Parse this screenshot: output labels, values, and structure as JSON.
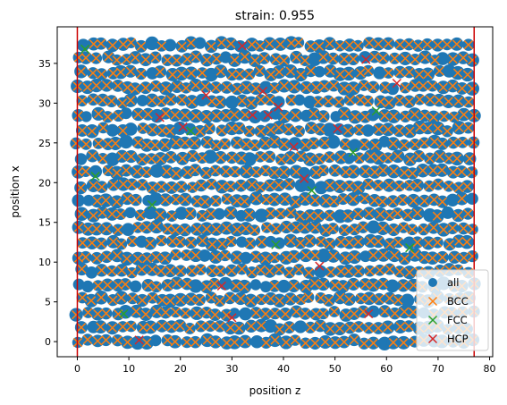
{
  "chart_data": {
    "type": "scatter",
    "title": "strain: 0.955",
    "xlabel": "position z",
    "ylabel": "position x",
    "xlim": [
      -3.9,
      80.6
    ],
    "ylim": [
      -1.9,
      39.6
    ],
    "xticks": [
      0,
      10,
      20,
      30,
      40,
      50,
      60,
      70,
      80
    ],
    "yticks": [
      0,
      5,
      10,
      15,
      20,
      25,
      30,
      35
    ],
    "vlines": [
      {
        "x": 0,
        "color": "#cc0000"
      },
      {
        "x": 77,
        "color": "#cc0000"
      }
    ],
    "lattice": {
      "x_start": 0.0,
      "x_end": 77.0,
      "x_spacing": 1.92,
      "y_start": 0.0,
      "y_end": 37.8,
      "y_spacing": 1.78,
      "stagger": 0.96
    },
    "series": [
      {
        "name": "all",
        "marker": "circle",
        "color": "#1f77b4"
      },
      {
        "name": "BCC",
        "marker": "x",
        "color": "#ff7f0e"
      },
      {
        "name": "FCC",
        "marker": "x",
        "color": "#2ca02c"
      },
      {
        "name": "HCP",
        "marker": "x",
        "color": "#d62728"
      }
    ],
    "fcc_points": [
      [
        1.5,
        36.8
      ],
      [
        3.5,
        20.8
      ],
      [
        9.0,
        3.5
      ],
      [
        14.5,
        17.2
      ],
      [
        38.5,
        12.2
      ],
      [
        45.5,
        19.0
      ],
      [
        53.5,
        23.8
      ],
      [
        64.5,
        11.8
      ],
      [
        22.0,
        26.5
      ],
      [
        58.0,
        29.0
      ]
    ],
    "hcp_points": [
      [
        12.0,
        0.2
      ],
      [
        16.0,
        28.2
      ],
      [
        20.5,
        27.0
      ],
      [
        25.0,
        31.0
      ],
      [
        28.0,
        7.0
      ],
      [
        30.0,
        3.0
      ],
      [
        34.0,
        28.5
      ],
      [
        36.0,
        31.5
      ],
      [
        37.0,
        28.5
      ],
      [
        39.0,
        29.5
      ],
      [
        42.0,
        24.5
      ],
      [
        44.0,
        20.5
      ],
      [
        47.0,
        9.5
      ],
      [
        50.5,
        26.8
      ],
      [
        56.0,
        35.5
      ],
      [
        56.5,
        3.5
      ],
      [
        62.0,
        32.5
      ],
      [
        32.0,
        37.2
      ]
    ],
    "legend": {
      "loc": "lower right",
      "entries": [
        "all",
        "BCC",
        "FCC",
        "HCP"
      ]
    }
  }
}
